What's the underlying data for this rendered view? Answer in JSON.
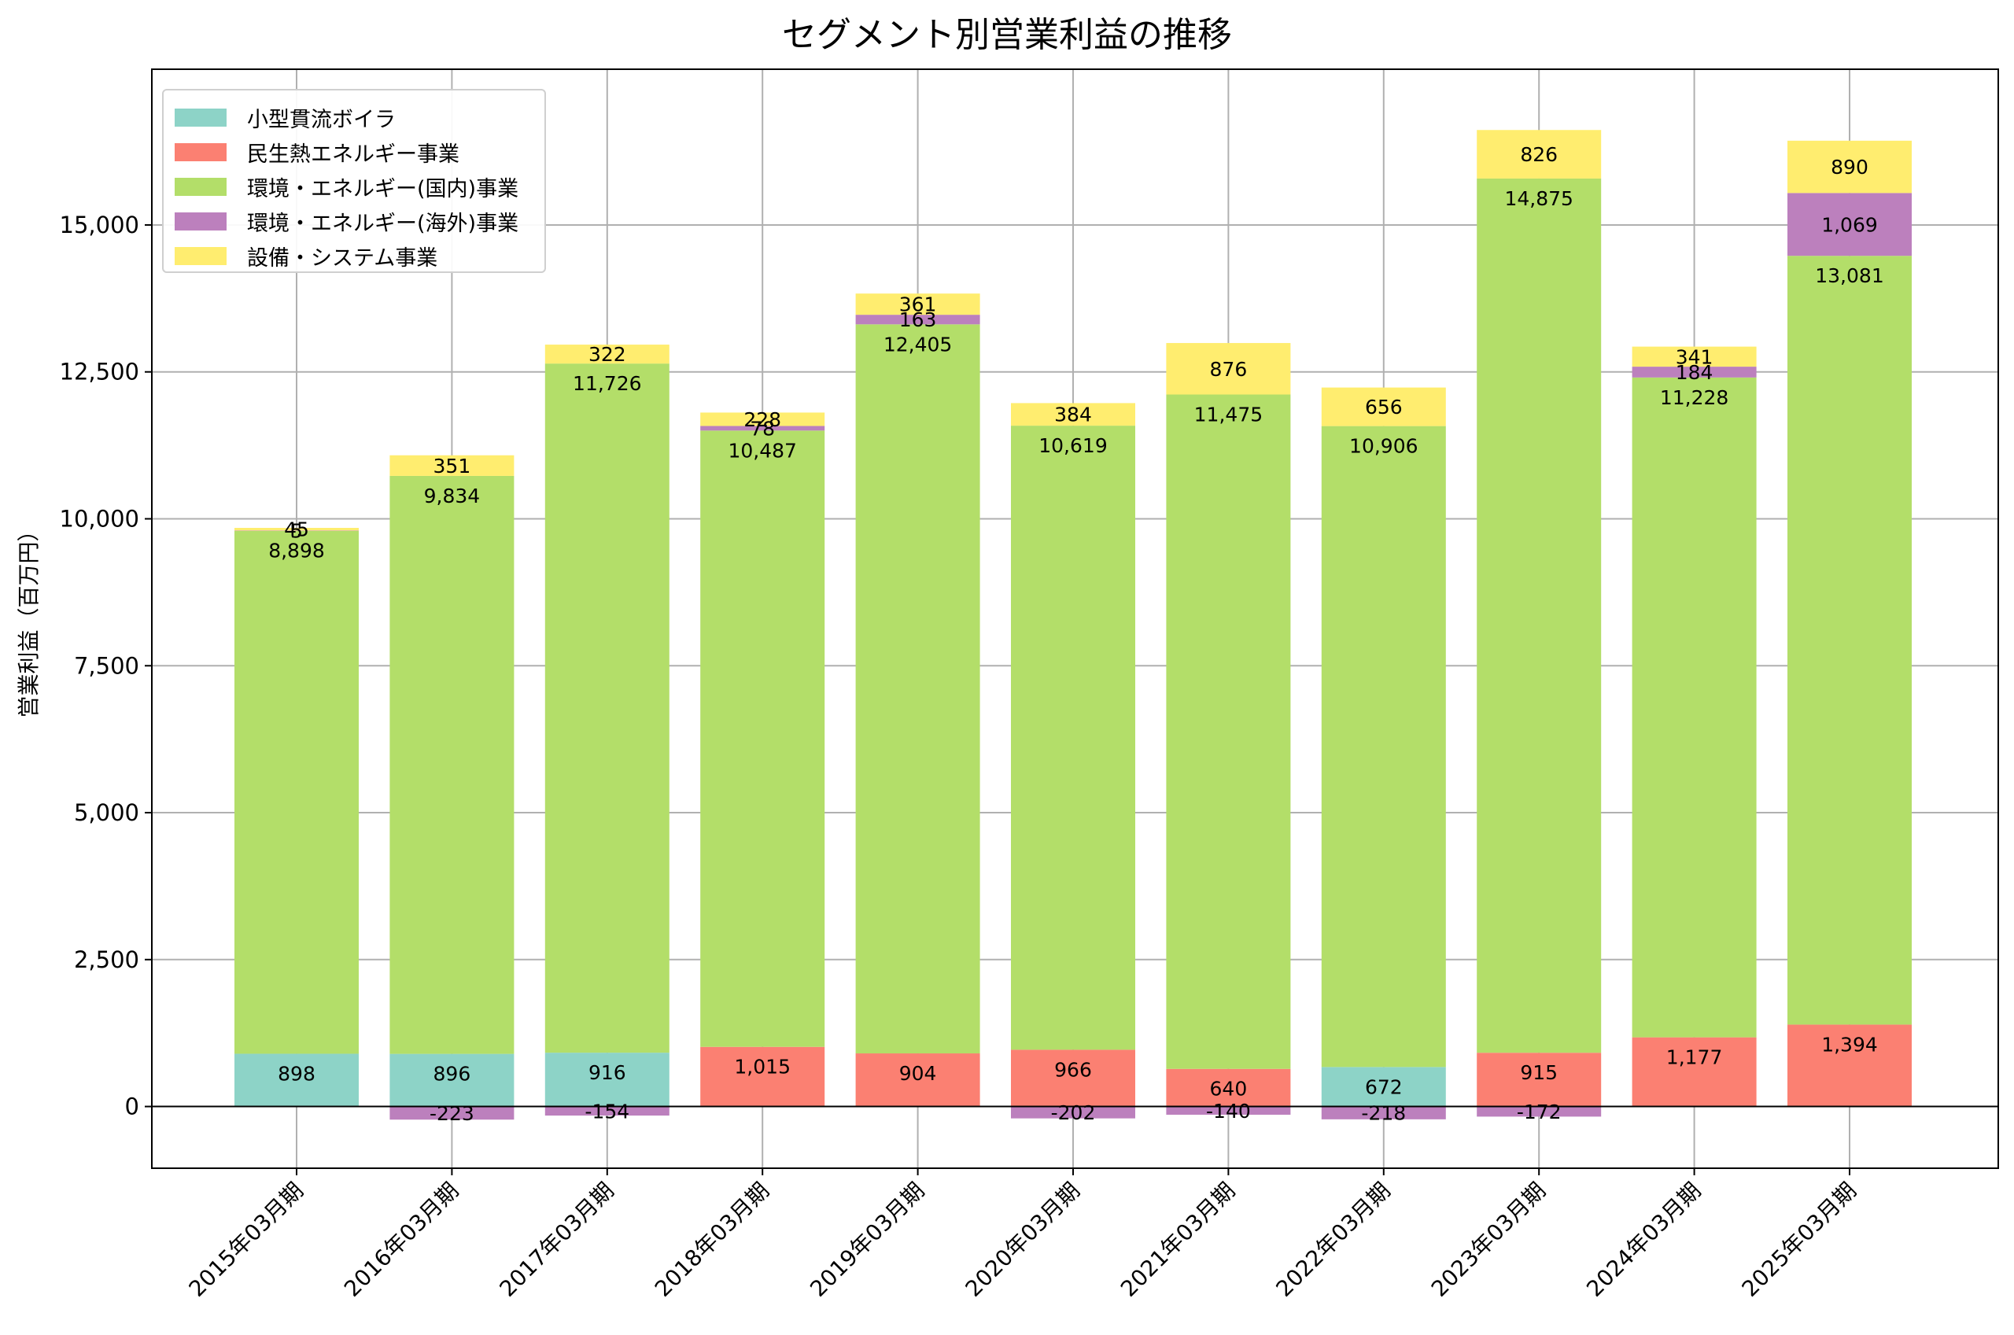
{
  "chart_data": {
    "type": "bar",
    "stacked": true,
    "title": "セグメント別営業利益の推移",
    "xlabel": "",
    "ylabel": "営業利益（百万円）",
    "ylim": [
      -1050,
      17650
    ],
    "yticks": [
      0,
      2500,
      5000,
      7500,
      10000,
      12500,
      15000
    ],
    "ytick_labels": [
      "0",
      "2,500",
      "5,000",
      "7,500",
      "10,000",
      "12,500",
      "15,000"
    ],
    "grid": true,
    "legend_position": "top-left",
    "categories": [
      "2015年03月期",
      "2016年03月期",
      "2017年03月期",
      "2018年03月期",
      "2019年03月期",
      "2020年03月期",
      "2021年03月期",
      "2022年03月期",
      "2023年03月期",
      "2024年03月期",
      "2025年03月期"
    ],
    "series": [
      {
        "name": "小型貫流ボイラ",
        "color": "#8dd3c7",
        "values": [
          898,
          896,
          916,
          null,
          null,
          null,
          null,
          672,
          null,
          null,
          null
        ],
        "labels": [
          "898",
          "896",
          "916",
          "",
          "",
          "",
          "",
          "672",
          "",
          "",
          ""
        ]
      },
      {
        "name": "民生熱エネルギー事業",
        "color": "#fb8072",
        "values": [
          null,
          null,
          null,
          1015,
          904,
          966,
          640,
          null,
          915,
          1177,
          1394
        ],
        "labels": [
          "",
          "",
          "",
          "1,015",
          "904",
          "966",
          "640",
          "",
          "915",
          "1,177",
          "1,394"
        ]
      },
      {
        "name": "環境・エネルギー(国内)事業",
        "color": "#b3de69",
        "values": [
          8898,
          9834,
          11726,
          10487,
          12405,
          10619,
          11475,
          10906,
          14875,
          11228,
          13081
        ],
        "labels": [
          "8,898",
          "9,834",
          "11,726",
          "10,487",
          "12,405",
          "10,619",
          "11,475",
          "10,906",
          "14,875",
          "11,228",
          "13,081"
        ]
      },
      {
        "name": "環境・エネルギー(海外)事業",
        "color": "#bc80bd",
        "values": [
          5,
          -223,
          -154,
          78,
          163,
          -202,
          -140,
          -218,
          -172,
          184,
          1069
        ],
        "labels": [
          "5",
          "-223",
          "-154",
          "78",
          "163",
          "-202",
          "-140",
          "-218",
          "-172",
          "184",
          "1,069"
        ]
      },
      {
        "name": "設備・システム事業",
        "color": "#ffed6f",
        "values": [
          45,
          351,
          322,
          228,
          361,
          384,
          876,
          656,
          826,
          341,
          890
        ],
        "labels": [
          "45",
          "351",
          "322",
          "228",
          "361",
          "384",
          "876",
          "656",
          "826",
          "341",
          "890"
        ]
      }
    ]
  }
}
